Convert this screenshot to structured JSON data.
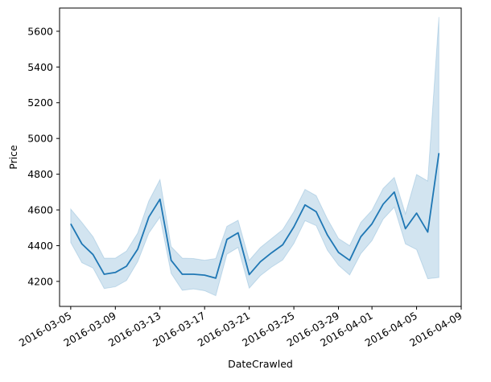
{
  "chart_data": {
    "type": "line",
    "title": "",
    "xlabel": "DateCrawled",
    "ylabel": "Price",
    "x_tick_labels": [
      "2016-03-05",
      "2016-03-09",
      "2016-03-13",
      "2016-03-17",
      "2016-03-21",
      "2016-03-25",
      "2016-03-29",
      "2016-04-01",
      "2016-04-05",
      "2016-04-09"
    ],
    "x_tick_dates": [
      "2016-03-05",
      "2016-03-09",
      "2016-03-13",
      "2016-03-17",
      "2016-03-21",
      "2016-03-25",
      "2016-03-29",
      "2016-04-01",
      "2016-04-05",
      "2016-04-09"
    ],
    "y_ticks": [
      4200,
      4400,
      4600,
      4800,
      5000,
      5200,
      5400,
      5600
    ],
    "xlim": [
      "2016-03-04",
      "2016-04-09"
    ],
    "ylim": [
      4060,
      5730
    ],
    "grid": false,
    "line_color": "#1f77b4",
    "band_color": "#1f77b4",
    "series": [
      {
        "x": [
          "2016-03-05",
          "2016-03-06",
          "2016-03-07",
          "2016-03-08",
          "2016-03-09",
          "2016-03-10",
          "2016-03-11",
          "2016-03-12",
          "2016-03-13",
          "2016-03-14",
          "2016-03-15",
          "2016-03-16",
          "2016-03-17",
          "2016-03-18",
          "2016-03-19",
          "2016-03-20",
          "2016-03-21",
          "2016-03-22",
          "2016-03-23",
          "2016-03-24",
          "2016-03-25",
          "2016-03-26",
          "2016-03-27",
          "2016-03-28",
          "2016-03-29",
          "2016-03-30",
          "2016-03-31",
          "2016-04-01",
          "2016-04-02",
          "2016-04-03",
          "2016-04-04",
          "2016-04-05",
          "2016-04-06",
          "2016-04-07"
        ],
        "values": [
          4522,
          4410,
          4350,
          4240,
          4250,
          4285,
          4380,
          4560,
          4660,
          4318,
          4240,
          4240,
          4235,
          4218,
          4435,
          4472,
          4238,
          4310,
          4360,
          4405,
          4505,
          4628,
          4590,
          4460,
          4362,
          4318,
          4450,
          4522,
          4632,
          4700,
          4495,
          4582,
          4476,
          4918
        ],
        "lower": [
          4418,
          4305,
          4275,
          4160,
          4170,
          4205,
          4310,
          4470,
          4560,
          4245,
          4150,
          4158,
          4148,
          4120,
          4352,
          4390,
          4162,
          4232,
          4280,
          4320,
          4412,
          4540,
          4512,
          4375,
          4290,
          4236,
          4355,
          4428,
          4548,
          4615,
          4410,
          4378,
          4215,
          4222
        ],
        "upper": [
          4605,
          4530,
          4450,
          4330,
          4330,
          4370,
          4470,
          4650,
          4770,
          4395,
          4330,
          4328,
          4318,
          4328,
          4508,
          4542,
          4318,
          4390,
          4440,
          4490,
          4590,
          4715,
          4680,
          4550,
          4440,
          4400,
          4530,
          4598,
          4720,
          4782,
          4578,
          4798,
          4762,
          5680
        ]
      }
    ]
  }
}
